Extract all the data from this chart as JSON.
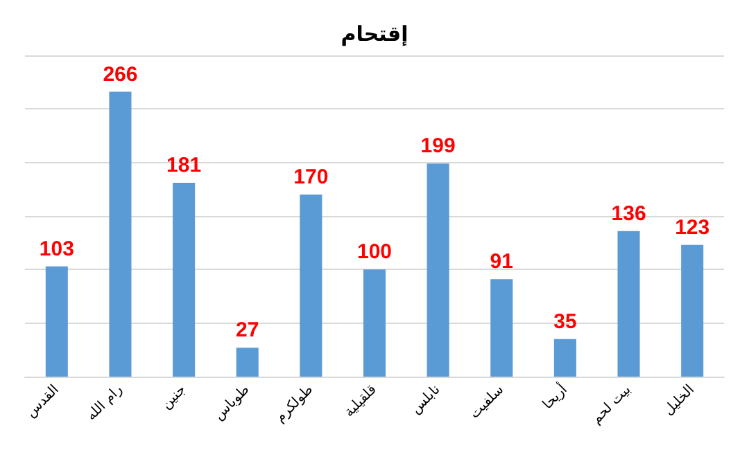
{
  "chart_data": {
    "type": "bar",
    "title": "إقتحام",
    "categories": [
      "القدس",
      "رام الله",
      "جنين",
      "طوباس",
      "طولكرم",
      "قلقيلية",
      "نابلس",
      "سلفيت",
      "أريحا",
      "بيت لحم",
      "الخليل"
    ],
    "values": [
      103,
      266,
      181,
      27,
      170,
      100,
      199,
      91,
      35,
      136,
      123
    ],
    "color": "#5b9bd5",
    "data_labels": true,
    "grid": "y",
    "tick_labels": "x",
    "ylim": [
      0,
      300
    ],
    "yticks": [
      {
        "value": 0,
        "label": null
      },
      {
        "value": 50,
        "label": null
      },
      {
        "value": 100,
        "label": null
      },
      {
        "value": 150,
        "label": null
      },
      {
        "value": 200,
        "label": null
      },
      {
        "value": 250,
        "label": null
      },
      {
        "value": 300,
        "label": null
      }
    ]
  }
}
